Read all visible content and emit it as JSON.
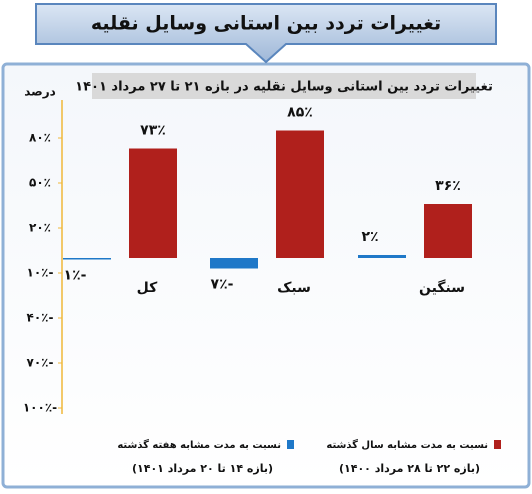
{
  "header": {
    "title": "تغییرات تردد بین استانی وسایل نقلیه"
  },
  "chart_data": {
    "type": "bar",
    "title": "تغییرات تردد بین استانی وسایل نقلیه در بازه ۲۱ تا ۲۷ مرداد ۱۴۰۱",
    "y_label": "درصد",
    "categories": [
      "کل",
      "سبک",
      "سنگین"
    ],
    "series": [
      {
        "name": "نسبت به مدت مشابه هفته گذشته",
        "period": "(بازه ۱۴ تا ۲۰ مرداد ۱۴۰۱)",
        "color": "#1f78c8",
        "values": [
          -1,
          -7,
          2
        ],
        "value_labels": [
          "۱٪-",
          "۷٪-",
          "۲٪"
        ]
      },
      {
        "name": "نسبت به مدت مشابه سال گذشته",
        "period": "(بازه ۲۲ تا ۲۸ مرداد ۱۴۰۰)",
        "color": "#b0201c",
        "values": [
          73,
          85,
          36
        ],
        "value_labels": [
          "۷۳٪",
          "۸۵٪",
          "۳۶٪"
        ]
      }
    ],
    "ylim": [
      -100,
      100
    ],
    "yticks": [
      {
        "value": 80,
        "label": "۸۰٪"
      },
      {
        "value": 50,
        "label": "۵۰٪"
      },
      {
        "value": 20,
        "label": "۲۰٪"
      },
      {
        "value": -10,
        "label": "۱۰٪-"
      },
      {
        "value": -40,
        "label": "۴۰٪-"
      },
      {
        "value": -70,
        "label": "۷۰٪-"
      },
      {
        "value": -100,
        "label": "۱۰۰٪-"
      }
    ],
    "grid": false
  }
}
